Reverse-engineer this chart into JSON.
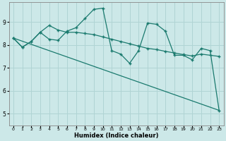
{
  "xlabel": "Humidex (Indice chaleur)",
  "bg_color": "#cce8e8",
  "grid_color": "#b0d4d4",
  "line_color": "#1a7a6e",
  "xlim": [
    -0.5,
    23.5
  ],
  "ylim": [
    4.5,
    9.85
  ],
  "yticks": [
    5,
    6,
    7,
    8,
    9
  ],
  "xticks": [
    0,
    1,
    2,
    3,
    4,
    5,
    6,
    7,
    8,
    9,
    10,
    11,
    12,
    13,
    14,
    15,
    16,
    17,
    18,
    19,
    20,
    21,
    22,
    23
  ],
  "line1_x": [
    0,
    1,
    2,
    3,
    4,
    5,
    6,
    7,
    8,
    9,
    10,
    11,
    12,
    13,
    14,
    15,
    16,
    17,
    18,
    19,
    20,
    21,
    22,
    23
  ],
  "line1_y": [
    8.3,
    7.9,
    8.15,
    8.55,
    8.85,
    8.65,
    8.55,
    8.55,
    8.5,
    8.45,
    8.35,
    8.25,
    8.15,
    8.05,
    7.95,
    7.85,
    7.8,
    7.72,
    7.65,
    7.58,
    7.52,
    7.6,
    7.55,
    7.5
  ],
  "line2_x": [
    0,
    1,
    2,
    3,
    4,
    5,
    6,
    7,
    8,
    9,
    10,
    11,
    12,
    13,
    14,
    15,
    16,
    17,
    18,
    19,
    20,
    21,
    22,
    23
  ],
  "line2_y": [
    8.3,
    7.9,
    8.15,
    8.55,
    8.25,
    8.2,
    8.6,
    8.75,
    9.15,
    9.55,
    9.6,
    7.75,
    7.6,
    7.2,
    7.75,
    8.95,
    8.9,
    8.6,
    7.55,
    7.55,
    7.35,
    7.85,
    7.75,
    5.15
  ],
  "line3_x": [
    0,
    23
  ],
  "line3_y": [
    8.3,
    5.15
  ]
}
